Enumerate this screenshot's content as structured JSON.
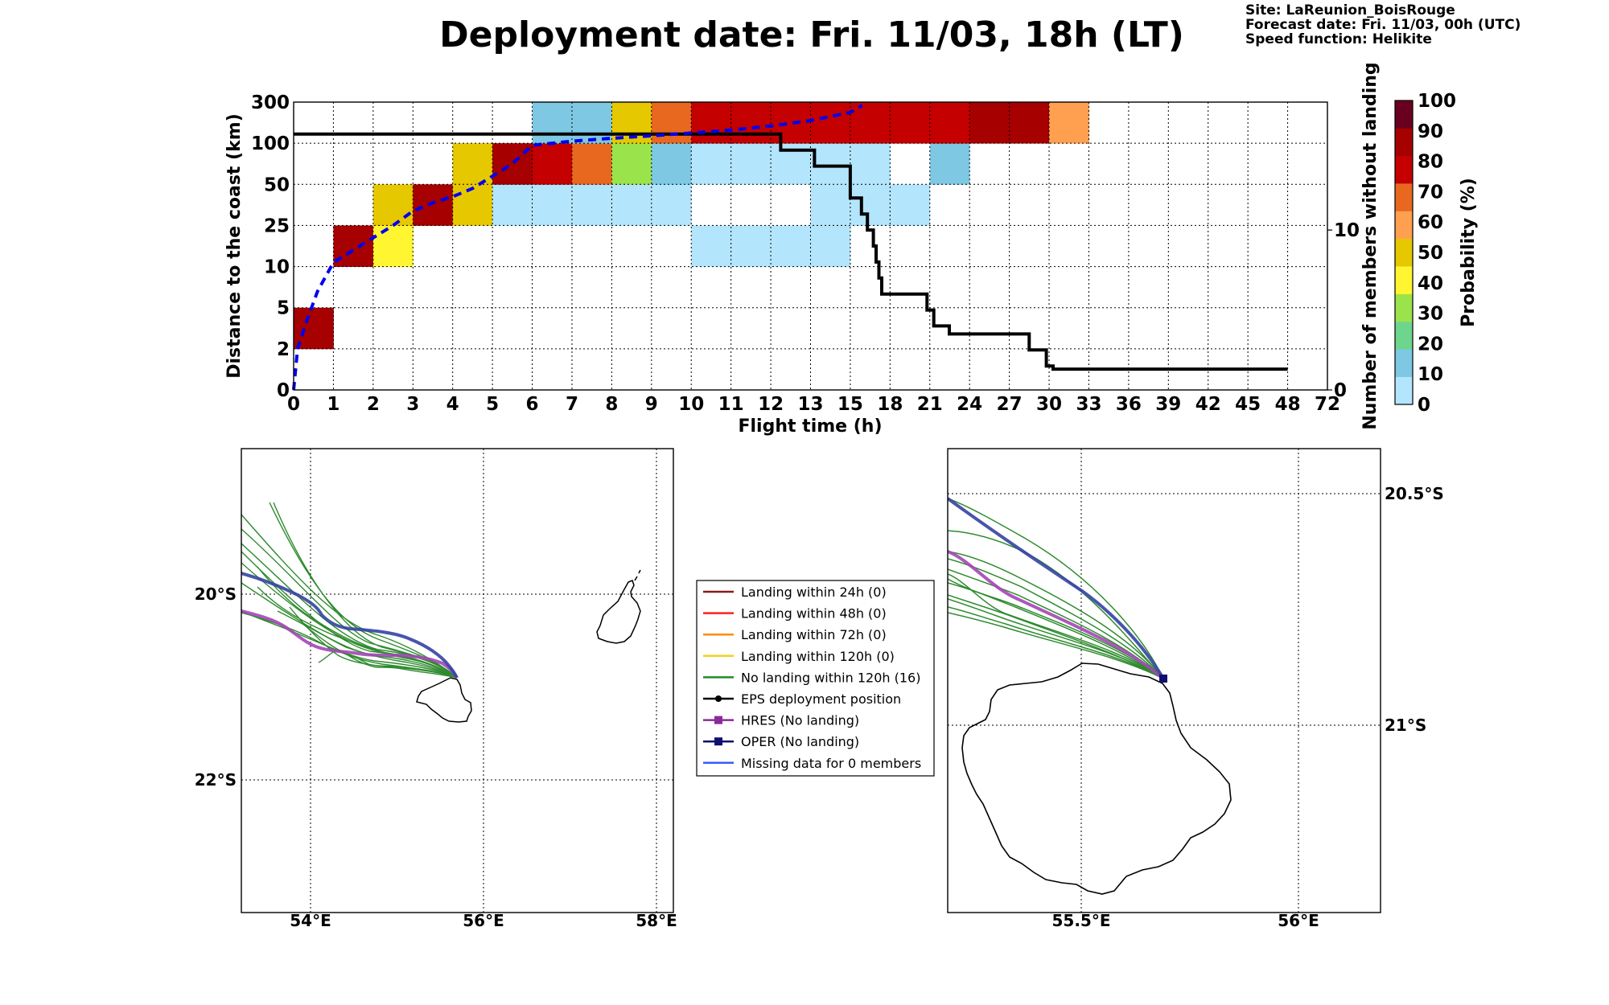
{
  "header": {
    "title": "Deployment date: Fri. 11/03, 18h (LT)",
    "site": "Site: LaReunion_BoisRouge",
    "forecast": "Forecast date: Fri. 11/03, 00h (UTC)",
    "speed": "Speed function: Helikite"
  },
  "chart_data": [
    {
      "type": "heatmap",
      "xlabel": "Flight time (h)",
      "ylabel": "Distance to the coast (km)",
      "y2label": "Number of members without landing",
      "x_ticks": [
        "0",
        "1",
        "2",
        "3",
        "4",
        "5",
        "6",
        "7",
        "8",
        "9",
        "10",
        "11",
        "12",
        "13",
        "15",
        "18",
        "21",
        "24",
        "27",
        "30",
        "33",
        "36",
        "39",
        "42",
        "45",
        "48",
        "72"
      ],
      "y_ticks": [
        "0",
        "2",
        "5",
        "10",
        "25",
        "50",
        "100",
        "300"
      ],
      "y2_ticks": [
        "0",
        "10"
      ],
      "y2lim": [
        0,
        18
      ],
      "colorbar": {
        "label": "Probability (%)",
        "ticks": [
          "0",
          "10",
          "20",
          "30",
          "40",
          "50",
          "60",
          "70",
          "80",
          "90",
          "100"
        ],
        "colors": [
          "#b3e5fc",
          "#7ec8e3",
          "#6dd58c",
          "#9be34a",
          "#fff530",
          "#e6c800",
          "#ffa050",
          "#e86820",
          "#c40000",
          "#a60000",
          "#6a0020"
        ]
      },
      "cells": [
        {
          "x": 0,
          "y": 1,
          "p": 95
        },
        {
          "x": 1,
          "y": 3,
          "p": 95
        },
        {
          "x": 2,
          "y": 3,
          "p": 45
        },
        {
          "x": 2,
          "y": 4,
          "p": 55
        },
        {
          "x": 3,
          "y": 4,
          "p": 95
        },
        {
          "x": 4,
          "y": 4,
          "p": 55
        },
        {
          "x": 4,
          "y": 5,
          "p": 55
        },
        {
          "x": 5,
          "y": 4,
          "p": 5
        },
        {
          "x": 5,
          "y": 5,
          "p": 95
        },
        {
          "x": 6,
          "y": 4,
          "p": 5
        },
        {
          "x": 6,
          "y": 5,
          "p": 85
        },
        {
          "x": 6,
          "y": 6,
          "p": 15
        },
        {
          "x": 7,
          "y": 4,
          "p": 5
        },
        {
          "x": 7,
          "y": 5,
          "p": 75
        },
        {
          "x": 7,
          "y": 6,
          "p": 15
        },
        {
          "x": 8,
          "y": 4,
          "p": 5
        },
        {
          "x": 8,
          "y": 5,
          "p": 35
        },
        {
          "x": 8,
          "y": 6,
          "p": 55
        },
        {
          "x": 9,
          "y": 4,
          "p": 5
        },
        {
          "x": 9,
          "y": 5,
          "p": 15
        },
        {
          "x": 9,
          "y": 6,
          "p": 75
        },
        {
          "x": 10,
          "y": 3,
          "p": 5
        },
        {
          "x": 10,
          "y": 5,
          "p": 5
        },
        {
          "x": 10,
          "y": 6,
          "p": 85
        },
        {
          "x": 11,
          "y": 3,
          "p": 5
        },
        {
          "x": 11,
          "y": 5,
          "p": 5
        },
        {
          "x": 11,
          "y": 6,
          "p": 85
        },
        {
          "x": 12,
          "y": 3,
          "p": 5
        },
        {
          "x": 12,
          "y": 5,
          "p": 5
        },
        {
          "x": 12,
          "y": 6,
          "p": 85
        },
        {
          "x": 13,
          "y": 3,
          "p": 5
        },
        {
          "x": 13,
          "y": 4,
          "p": 5
        },
        {
          "x": 13,
          "y": 5,
          "p": 5
        },
        {
          "x": 13,
          "y": 6,
          "p": 85
        },
        {
          "x": 14,
          "y": 4,
          "p": 5
        },
        {
          "x": 14,
          "y": 5,
          "p": 5
        },
        {
          "x": 14,
          "y": 6,
          "p": 85
        },
        {
          "x": 15,
          "y": 4,
          "p": 5
        },
        {
          "x": 15,
          "y": 6,
          "p": 85
        },
        {
          "x": 16,
          "y": 5,
          "p": 15
        },
        {
          "x": 16,
          "y": 6,
          "p": 85
        },
        {
          "x": 17,
          "y": 6,
          "p": 95
        },
        {
          "x": 18,
          "y": 6,
          "p": 95
        },
        {
          "x": 19,
          "y": 6,
          "p": 65
        }
      ],
      "members_without_landing_line": {
        "x": [
          0,
          12.25,
          12.25,
          13.1,
          13.1,
          14.0,
          14.0,
          14.28,
          14.28,
          14.43,
          14.43,
          14.58,
          14.58,
          14.65,
          14.65,
          14.72,
          14.72,
          14.79,
          14.79,
          15.93,
          15.93,
          16.1,
          16.1,
          16.49,
          16.49,
          18.5,
          18.5,
          18.93,
          18.93,
          19.1,
          19.1,
          25
        ],
        "y": [
          16,
          16,
          15,
          15,
          14,
          14,
          12,
          12,
          11,
          11,
          10,
          10,
          9,
          9,
          8,
          8,
          7,
          7,
          6,
          6,
          5,
          5,
          4,
          4,
          3.5,
          3.5,
          2.5,
          2.5,
          1.5,
          1.5,
          1.3,
          1.3
        ]
      },
      "median_distance_line": {
        "style": "blue dashed",
        "x": [
          0,
          0.1,
          0.3,
          0.6,
          1.0,
          1.5,
          2.0,
          2.5,
          3.0,
          3.5,
          4.0,
          4.5,
          5.0,
          5.5,
          6.0,
          7.0,
          8.0,
          9.0,
          10.0,
          11.0,
          12.0,
          13.0,
          14.0,
          14.3
        ],
        "y": [
          0,
          1.0,
          1.6,
          2.4,
          3.1,
          3.4,
          3.7,
          4.0,
          4.35,
          4.55,
          4.7,
          4.9,
          5.2,
          5.5,
          5.95,
          6.05,
          6.12,
          6.18,
          6.25,
          6.32,
          6.42,
          6.55,
          6.75,
          6.92
        ]
      }
    }
  ],
  "left_map": {
    "x_ticks": [
      "54°E",
      "56°E",
      "58°E"
    ],
    "y_ticks": [
      "20°S",
      "22°S"
    ]
  },
  "right_map": {
    "x_ticks": [
      "55.5°E",
      "56°E"
    ],
    "y_ticks": [
      "20.5°S",
      "21°S"
    ]
  },
  "legend": [
    {
      "label": "Landing within 24h (0)",
      "color": "#8b1a1a",
      "marker": "none"
    },
    {
      "label": "Landing within 48h (0)",
      "color": "#ff2020",
      "marker": "none"
    },
    {
      "label": "Landing within 72h (0)",
      "color": "#ff8c00",
      "marker": "none"
    },
    {
      "label": "Landing within 120h (0)",
      "color": "#f2d21b",
      "marker": "none"
    },
    {
      "label": "No landing within 120h (16)",
      "color": "#228b22",
      "marker": "none"
    },
    {
      "label": "EPS deployment position",
      "color": "#000000",
      "marker": "circle"
    },
    {
      "label": "HRES (No landing)",
      "color": "#8b2a9a",
      "marker": "square"
    },
    {
      "label": "OPER (No landing)",
      "color": "#10106e",
      "marker": "square"
    },
    {
      "label": "Missing data for 0 members",
      "color": "#3a5bff",
      "marker": "none"
    }
  ]
}
